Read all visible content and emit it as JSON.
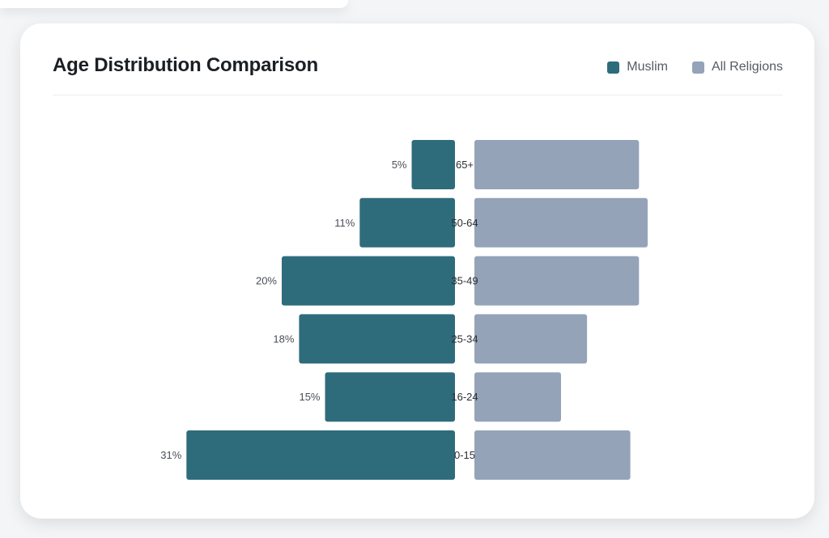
{
  "colors": {
    "muslim": "#2e6c7c",
    "all_religions": "#94a3b8"
  },
  "chart_data": {
    "type": "bar",
    "title": "Age Distribution Comparison",
    "categories": [
      "65+",
      "50-64",
      "35-49",
      "25-34",
      "16-24",
      "0-15"
    ],
    "series": [
      {
        "name": "Muslim",
        "values": [
          5,
          11,
          20,
          18,
          15,
          31
        ],
        "labels": [
          "5%",
          "11%",
          "20%",
          "18%",
          "15%",
          "31%"
        ]
      },
      {
        "name": "All Religions",
        "values": [
          19,
          20,
          19,
          13,
          10,
          18
        ]
      }
    ],
    "legend_position": "top-right",
    "grid": false
  }
}
